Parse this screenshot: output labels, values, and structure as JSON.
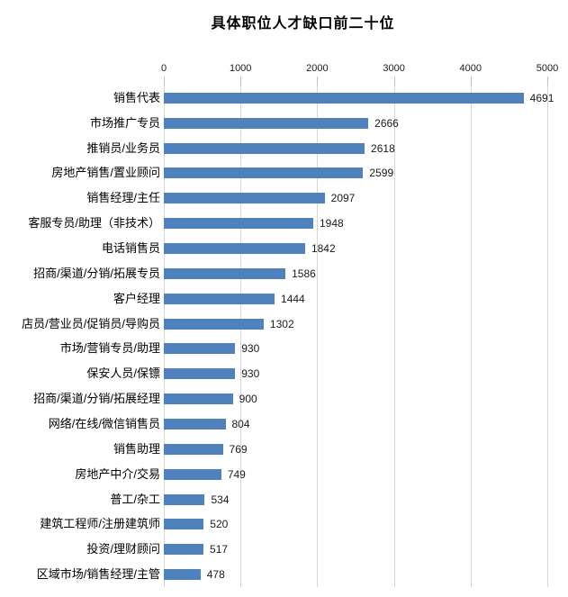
{
  "chart_data": {
    "type": "bar",
    "orientation": "horizontal",
    "title": "具体职位人才缺口前二十位",
    "categories": [
      "销售代表",
      "市场推广专员",
      "推销员/业务员",
      "房地产销售/置业顾问",
      "销售经理/主任",
      "客服专员/助理（非技术）",
      "电话销售员",
      "招商/渠道/分销/拓展专员",
      "客户经理",
      "店员/营业员/促销员/导购员",
      "市场/营销专员/助理",
      "保安人员/保镖",
      "招商/渠道/分销/拓展经理",
      "网络/在线/微信销售员",
      "销售助理",
      "房地产中介/交易",
      "普工/杂工",
      "建筑工程师/注册建筑师",
      "投资/理财顾问",
      "区域市场/销售经理/主管"
    ],
    "values": [
      4691,
      2666,
      2618,
      2599,
      2097,
      1948,
      1842,
      1586,
      1444,
      1302,
      930,
      930,
      900,
      804,
      769,
      749,
      534,
      520,
      517,
      478
    ],
    "xlim": [
      0,
      5000
    ],
    "x_ticks": [
      0,
      1000,
      2000,
      3000,
      4000,
      5000
    ],
    "axis_position": "top",
    "grid": true,
    "legend": "none",
    "bar_color": "#4F81BD",
    "gridline_color": "#D6D6D6",
    "tick_color": "#BFBFBF",
    "value_label_color": "#1a1a1a",
    "text_color": "#000000"
  }
}
